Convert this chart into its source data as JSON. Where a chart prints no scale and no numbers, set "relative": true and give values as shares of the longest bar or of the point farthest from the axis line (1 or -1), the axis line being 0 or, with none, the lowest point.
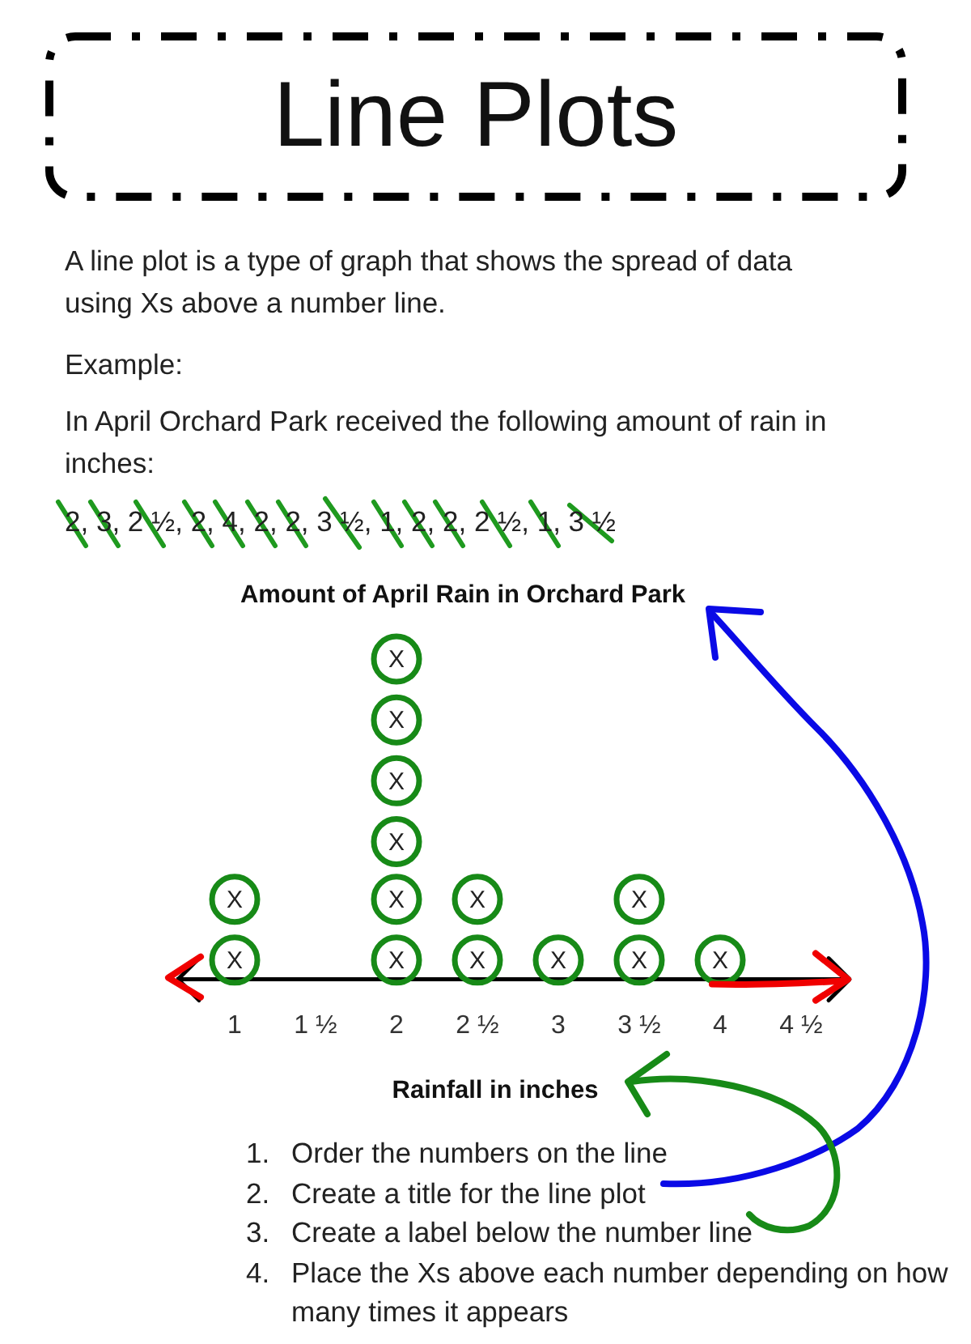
{
  "chart_data": {
    "type": "scatter",
    "title": "Amount of April Rain in Orchard Park",
    "xlabel": "Rainfall in inches",
    "x": [
      1,
      1,
      2,
      2,
      2,
      2,
      2,
      2,
      2.5,
      2.5,
      3,
      3.5,
      3.5,
      4
    ],
    "values": [
      0.06,
      0.25,
      0.06,
      0.25,
      0.43,
      0.62,
      0.81,
      1,
      0.06,
      0.25,
      0.06,
      0.06,
      0.25,
      0.06
    ],
    "color": "#178a17",
    "relative": true,
    "marker": "circle",
    "xlim": [
      0.65,
      4.8
    ],
    "xticks": [
      1,
      {
        "value": 1.5,
        "label": "1 ½"
      },
      2,
      {
        "value": 2.5,
        "label": "2 ½"
      },
      3,
      {
        "value": 3.5,
        "label": "3 ½"
      },
      4,
      {
        "value": 4.5,
        "label": "4 ½"
      }
    ],
    "annotations": [
      "Line Plots",
      "A line plot is a type of graph that shows the spread of data using Xs above a number line.",
      "Example:",
      "In April Orchard Park received the following amount of rain in inches:",
      "2, 3, 2 ½, 2, 4, 2, 2, 3 ½, 1, 2, 2, 2 ½, 1, 3 ½",
      "1. Order the numbers on the line",
      "2. Create a title for the line plot",
      "3. Create a label below the number line",
      "4. Place the Xs above each number depending on how many times it appears",
      {
        "text": "X",
        "x": 1,
        "y": 0.06
      },
      {
        "text": "X",
        "x": 1,
        "y": 0.25
      },
      {
        "text": "X",
        "x": 2,
        "y": 0.06
      },
      {
        "text": "X",
        "x": 2,
        "y": 0.25
      },
      {
        "text": "X",
        "x": 2,
        "y": 0.43
      },
      {
        "text": "X",
        "x": 2,
        "y": 0.62
      },
      {
        "text": "X",
        "x": 2,
        "y": 0.81
      },
      {
        "text": "X",
        "x": 2,
        "y": 1
      },
      {
        "text": "X",
        "x": 2.5,
        "y": 0.06
      },
      {
        "text": "X",
        "x": 2.5,
        "y": 0.25
      },
      {
        "text": "X",
        "x": 3,
        "y": 0.06
      },
      {
        "text": "X",
        "x": 3.5,
        "y": 0.06
      },
      {
        "text": "X",
        "x": 3.5,
        "y": 0.25
      },
      {
        "text": "X",
        "x": 4,
        "y": 0.06
      }
    ]
  }
}
